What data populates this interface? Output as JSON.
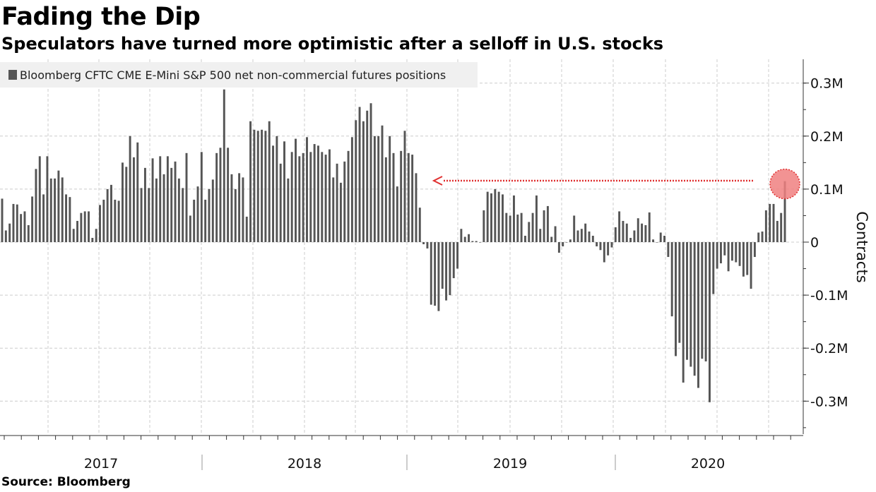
{
  "title": "Fading the Dip",
  "subtitle": "Speculators have turned more optimistic after a selloff in U.S. stocks",
  "source": "Source: Bloomberg",
  "colors": {
    "bar": "#555555",
    "highlight_fill": "#f08080",
    "highlight_stroke": "#e03030",
    "arrow": "#e03030",
    "grid": "#cccccc"
  },
  "chart_data": {
    "type": "bar",
    "legend": "Bloomberg CFTC CME E-Mini S&P 500 net non-commercial futures positions",
    "legend_position": "top-left",
    "ylabel": "Contracts",
    "xlabel": "",
    "ylim": [
      -0.36,
      0.34
    ],
    "y_ticks": [
      {
        "value": 0.3,
        "label": "0.3M"
      },
      {
        "value": 0.2,
        "label": "0.2M"
      },
      {
        "value": 0.1,
        "label": "0.1M"
      },
      {
        "value": 0,
        "label": "0"
      },
      {
        "value": -0.1,
        "label": "-0.1M"
      },
      {
        "value": -0.2,
        "label": "-0.2M"
      },
      {
        "value": -0.3,
        "label": "-0.3M"
      }
    ],
    "x_labels": [
      "2017",
      "2018",
      "2019",
      "2020"
    ],
    "grid": true,
    "annotation": "arrow from latest value back to the last comparable level in late 2018",
    "series": [
      {
        "values": [
          0.082,
          0.022,
          0.035,
          0.072,
          0.071,
          0.053,
          0.058,
          0.032,
          0.086,
          0.138,
          0.162,
          0.09,
          0.162,
          0.12,
          0.12,
          0.135,
          0.122,
          0.09,
          0.085,
          0.025,
          0.04,
          0.055,
          0.058,
          0.058,
          0.008,
          0.025,
          0.07,
          0.08,
          0.1,
          0.108,
          0.08,
          0.078,
          0.15,
          0.142,
          0.2,
          0.16,
          0.188,
          0.102,
          0.14,
          0.102,
          0.158,
          0.12,
          0.162,
          0.128,
          0.162,
          0.14,
          0.152,
          0.12,
          0.102,
          0.168,
          0.05,
          0.08,
          0.105,
          0.17,
          0.08,
          0.1,
          0.118,
          0.168,
          0.178,
          0.288,
          0.178,
          0.128,
          0.1,
          0.13,
          0.122,
          0.048,
          0.228,
          0.212,
          0.21,
          0.212,
          0.21,
          0.228,
          0.182,
          0.2,
          0.148,
          0.19,
          0.12,
          0.17,
          0.195,
          0.162,
          0.168,
          0.198,
          0.17,
          0.185,
          0.182,
          0.17,
          0.165,
          0.175,
          0.122,
          0.148,
          0.112,
          0.152,
          0.172,
          0.198,
          0.23,
          0.255,
          0.228,
          0.248,
          0.262,
          0.2,
          0.2,
          0.22,
          0.16,
          0.2,
          0.168,
          0.105,
          0.172,
          0.21,
          0.168,
          0.165,
          0.13,
          0.065,
          -0.004,
          -0.012,
          -0.118,
          -0.12,
          -0.13,
          -0.088,
          -0.11,
          -0.1,
          -0.068,
          -0.05,
          0.025,
          0.01,
          0.015,
          0.002,
          0.002,
          0.0,
          0.06,
          0.095,
          0.092,
          0.1,
          0.095,
          0.09,
          0.055,
          0.05,
          0.088,
          0.052,
          0.055,
          0.012,
          0.038,
          0.055,
          0.088,
          0.025,
          0.06,
          0.068,
          0.01,
          0.03,
          -0.02,
          -0.008,
          0.0,
          0.005,
          0.05,
          0.022,
          0.025,
          0.035,
          0.02,
          0.012,
          -0.008,
          -0.015,
          -0.038,
          -0.025,
          -0.01,
          0.028,
          0.058,
          0.04,
          0.035,
          0.008,
          0.022,
          0.045,
          0.035,
          0.032,
          0.056,
          0.005,
          0.0,
          0.018,
          0.012,
          -0.028,
          -0.14,
          -0.215,
          -0.19,
          -0.265,
          -0.222,
          -0.235,
          -0.252,
          -0.275,
          -0.22,
          -0.225,
          -0.302,
          -0.098,
          -0.05,
          -0.04,
          -0.025,
          -0.055,
          -0.035,
          -0.038,
          -0.045,
          -0.065,
          -0.062,
          -0.088,
          -0.028,
          0.018,
          0.02,
          0.06,
          0.072,
          0.072,
          0.04,
          0.055,
          0.115
        ]
      }
    ]
  }
}
